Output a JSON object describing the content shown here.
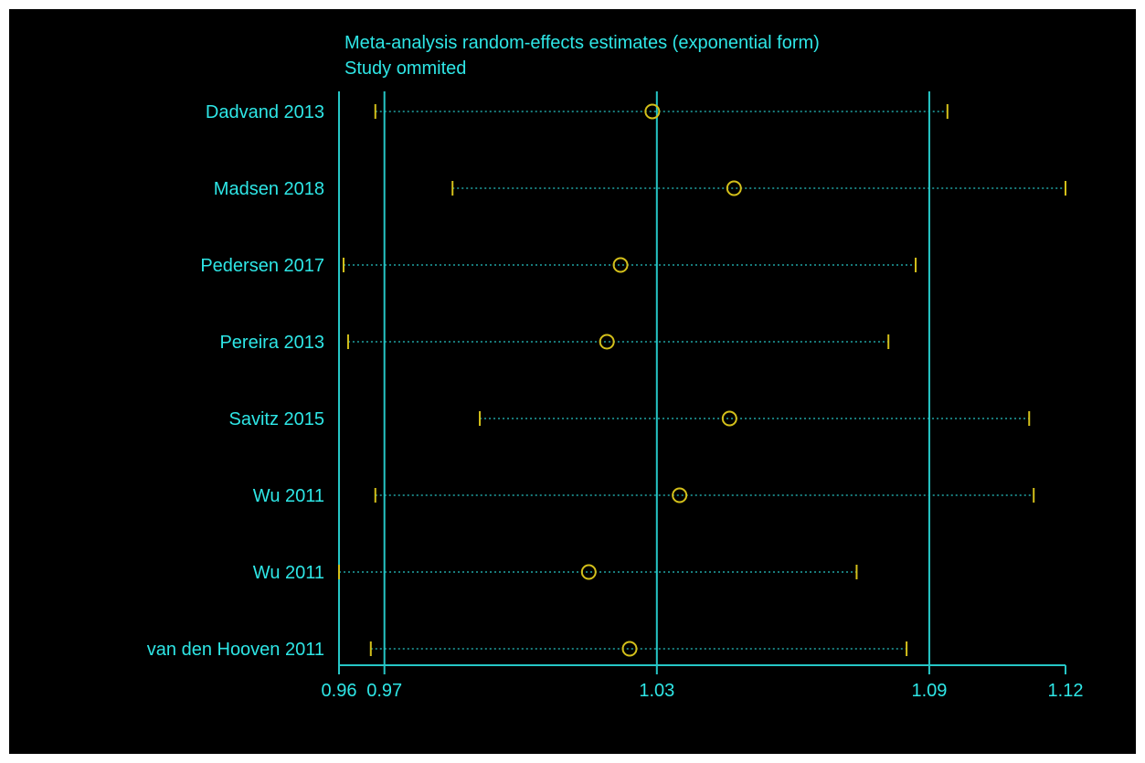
{
  "colors": {
    "background": "#000000",
    "axis": "#26c6c6",
    "text": "#2ee6e6",
    "marker": "#d4c01a",
    "ci_line": "#26c6c6"
  },
  "chart_data": {
    "type": "scatter",
    "title": "Meta-analysis random-effects estimates (exponential form)",
    "subtitle": "Study ommited",
    "xlim": [
      0.96,
      1.12
    ],
    "x_ticks": [
      0.96,
      0.97,
      1.03,
      1.09,
      1.12
    ],
    "x_tick_labels": [
      "0.96",
      "0.97",
      "1.03",
      "1.09",
      "1.12"
    ],
    "reference_lines": [
      0.97,
      1.03,
      1.09
    ],
    "grid": false,
    "legend": "none",
    "studies": [
      {
        "label": "Dadvand 2013",
        "estimate": 1.029,
        "lower": 0.968,
        "upper": 1.094
      },
      {
        "label": "Madsen 2018",
        "estimate": 1.047,
        "lower": 0.985,
        "upper": 1.12
      },
      {
        "label": "Pedersen 2017",
        "estimate": 1.022,
        "lower": 0.961,
        "upper": 1.087
      },
      {
        "label": "Pereira  2013",
        "estimate": 1.019,
        "lower": 0.962,
        "upper": 1.081
      },
      {
        "label": "Savitz 2015",
        "estimate": 1.046,
        "lower": 0.991,
        "upper": 1.112
      },
      {
        "label": "Wu  2011",
        "estimate": 1.035,
        "lower": 0.968,
        "upper": 1.113
      },
      {
        "label": "Wu  2011",
        "estimate": 1.015,
        "lower": 0.96,
        "upper": 1.074
      },
      {
        "label": "van den Hooven  2011",
        "estimate": 1.024,
        "lower": 0.967,
        "upper": 1.085
      }
    ]
  }
}
